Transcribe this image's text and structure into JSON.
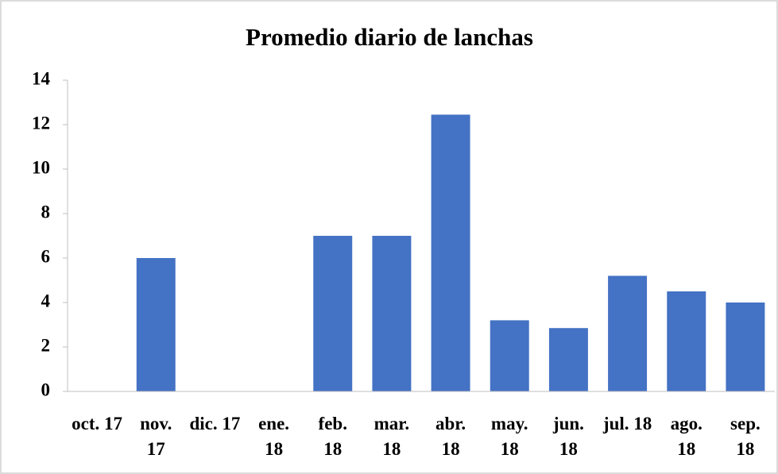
{
  "chart_data": {
    "type": "bar",
    "title": "Promedio diario de lanchas",
    "categories": [
      "oct. 17",
      "nov. 17",
      "dic. 17",
      "ene. 18",
      "feb. 18",
      "mar. 18",
      "abr. 18",
      "may. 18",
      "jun. 18",
      "jul. 18",
      "ago. 18",
      "sep. 18"
    ],
    "values": [
      0,
      6,
      0,
      0,
      7,
      7,
      12.45,
      3.2,
      2.85,
      5.2,
      4.5,
      4
    ],
    "color": "#4472c4",
    "ylim": [
      0,
      14
    ],
    "yticks": [
      0,
      2,
      4,
      6,
      8,
      10,
      12,
      14
    ],
    "grid": false
  }
}
